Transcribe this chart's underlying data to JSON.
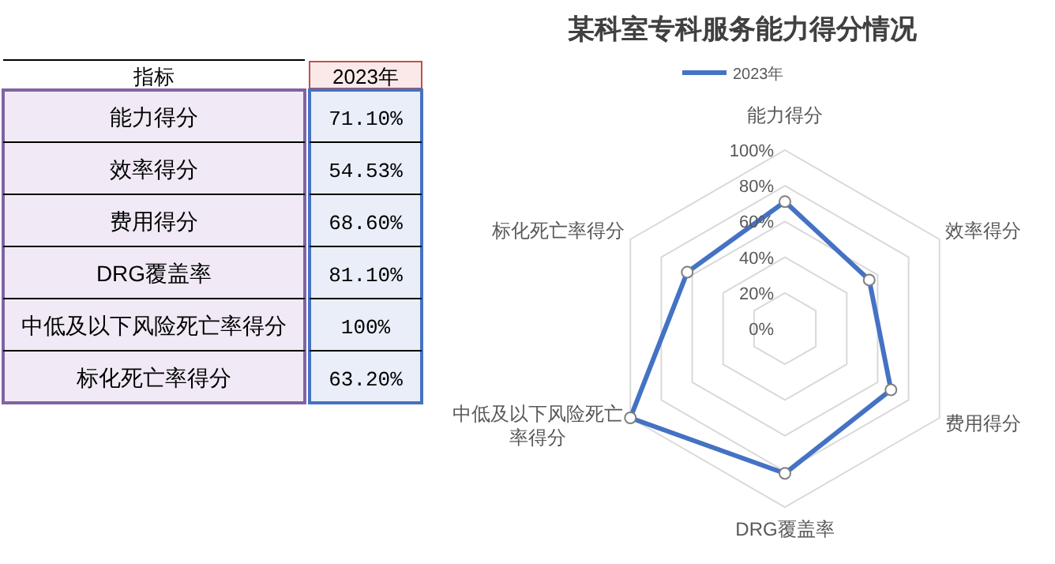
{
  "chart_data": [
    {
      "type": "other",
      "annotations": [
        "指标",
        "2023年",
        "能力得分",
        "71.10%",
        "效率得分",
        "54.53%",
        "费用得分",
        "68.60%",
        "DRG覆盖率",
        "81.10%",
        "中低及以下风险死亡率得分",
        "100%",
        "标化死亡率得分",
        "63.20%"
      ]
    },
    {
      "type": "radar",
      "title": "某科室专科服务能力得分情况",
      "categories": [
        "能力得分",
        "效率得分",
        "费用得分",
        "DRG覆盖率",
        "中低及以下风险死亡率得分",
        "标化死亡率得分"
      ],
      "series": [
        {
          "name": "2023年",
          "color": "#4472c4",
          "values": [
            71.1,
            54.53,
            68.6,
            81.1,
            100,
            63.2
          ]
        }
      ],
      "ylim": [
        0,
        100
      ],
      "yticks": [
        {
          "value": 0,
          "label": "0%"
        },
        {
          "value": 20,
          "label": "20%"
        },
        {
          "value": 40,
          "label": "40%"
        },
        {
          "value": 60,
          "label": "60%"
        },
        {
          "value": 80,
          "label": "80%"
        },
        {
          "value": 100,
          "label": "100%"
        }
      ],
      "grid": true,
      "legend": "top",
      "marker": "circle",
      "line_style": "solid"
    }
  ]
}
